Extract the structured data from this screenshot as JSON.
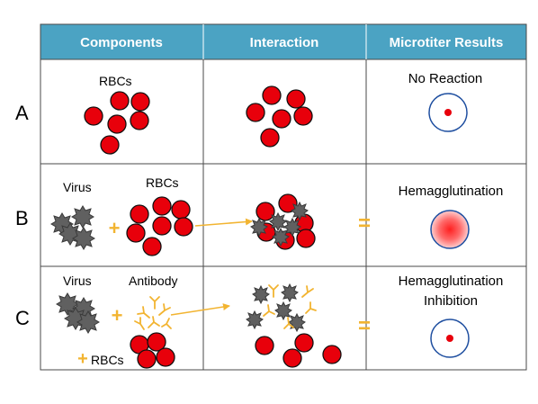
{
  "headers": [
    "Components",
    "Interaction",
    "Microtiter Results"
  ],
  "rows": [
    {
      "label": "A",
      "components_labels": [
        "RBCs"
      ],
      "result": "No Reaction"
    },
    {
      "label": "B",
      "components_labels": [
        "Virus",
        "RBCs"
      ],
      "result": "Hemagglutination"
    },
    {
      "label": "C",
      "components_labels": [
        "Virus",
        "Antibody",
        "RBCs"
      ],
      "result_line1": "Hemagglutination",
      "result_line2": "Inhibition"
    }
  ],
  "symbols": {
    "plus": "+",
    "equals": "="
  },
  "colors": {
    "header_bg": "#4ba3c3",
    "rbc_fill": "#e8000b",
    "virus_fill": "#606060",
    "antibody": "#f2b431",
    "plus": "#f2b431",
    "well_border": "#1f4fa0"
  },
  "icons": [
    "red-blood-cell-icon",
    "virus-icon",
    "antibody-icon",
    "microtiter-well-icon",
    "arrow-icon",
    "plus-icon",
    "equals-icon"
  ]
}
